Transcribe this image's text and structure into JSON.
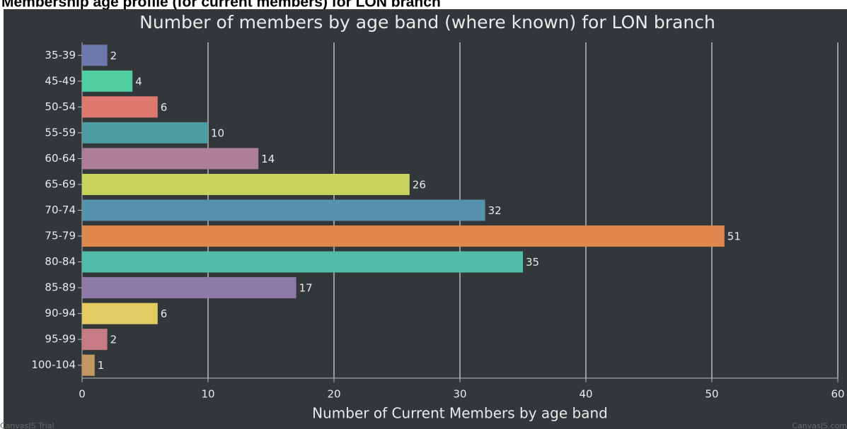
{
  "page_heading": "Membership age profile (for current members) for LON branch",
  "chart_data": {
    "type": "bar",
    "orientation": "horizontal",
    "title": "Number of members by age band (where known) for LON branch",
    "x_label": "Number of Current Members by age band",
    "categories": [
      "35-39",
      "45-49",
      "50-54",
      "55-59",
      "60-64",
      "65-69",
      "70-74",
      "75-79",
      "80-84",
      "85-89",
      "90-94",
      "95-99",
      "100-104"
    ],
    "values": [
      2,
      4,
      6,
      10,
      14,
      26,
      32,
      51,
      35,
      17,
      6,
      2,
      1
    ],
    "colors": [
      "#6d78ad",
      "#51cda0",
      "#df7970",
      "#4c9ca0",
      "#ae7d99",
      "#c9d45c",
      "#5592ad",
      "#df874d",
      "#52bca8",
      "#8e7aa8",
      "#e3cb64",
      "#c77b85",
      "#c39762"
    ],
    "xlim": [
      0,
      60
    ],
    "xticks": [
      0,
      10,
      20,
      30,
      40,
      50,
      60
    ],
    "grid": true,
    "watermarks": [
      "CanvasJS Trial",
      "CanvasJS.com"
    ]
  }
}
